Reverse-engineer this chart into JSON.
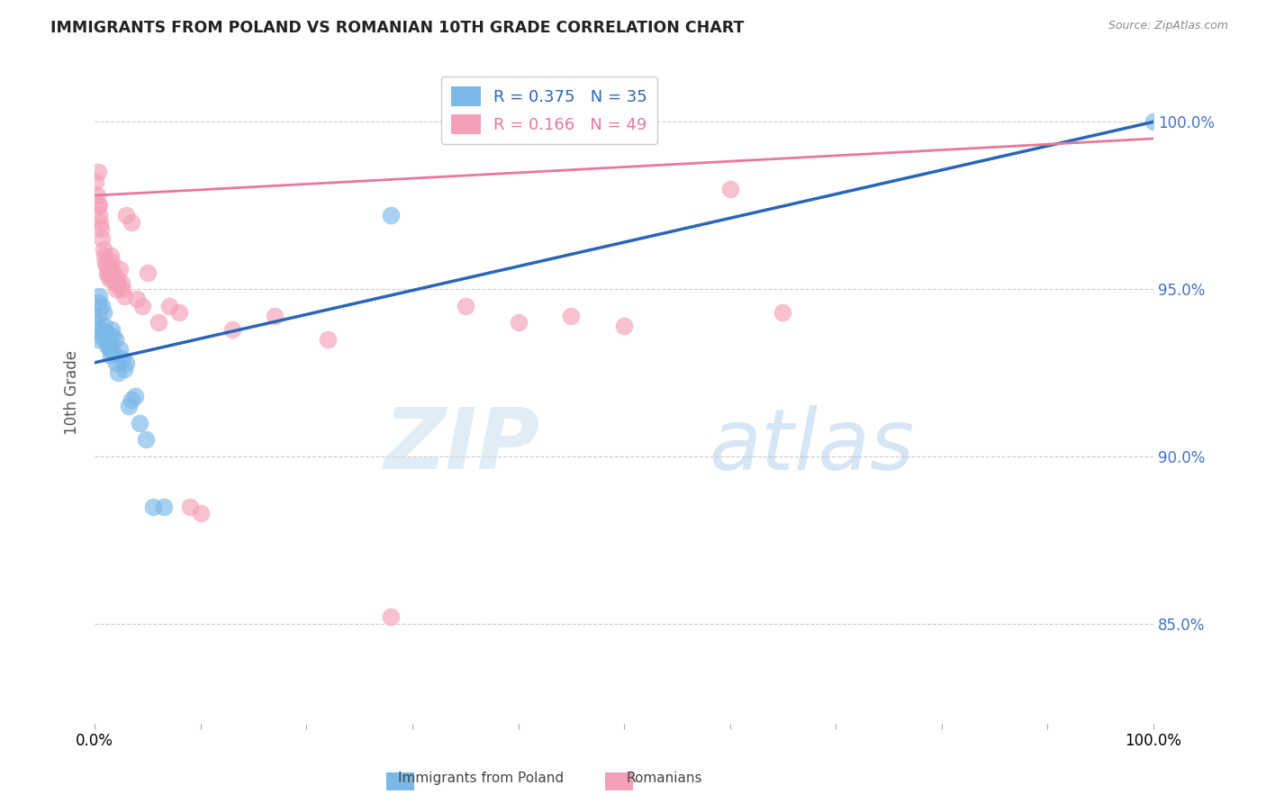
{
  "title": "IMMIGRANTS FROM POLAND VS ROMANIAN 10TH GRADE CORRELATION CHART",
  "source": "Source: ZipAtlas.com",
  "ylabel": "10th Grade",
  "y_ticks": [
    85.0,
    90.0,
    95.0,
    100.0
  ],
  "y_tick_labels": [
    "85.0%",
    "90.0%",
    "95.0%",
    "100.0%"
  ],
  "legend_r1": "R = 0.375",
  "legend_n1": "N = 35",
  "legend_r2": "R = 0.166",
  "legend_n2": "N = 49",
  "blue_color": "#7ab8e8",
  "pink_color": "#f4a0b8",
  "blue_line_color": "#2966b8",
  "pink_line_color": "#e8789a",
  "watermark_zip": "ZIP",
  "watermark_atlas": "atlas",
  "blue_scatter_x": [
    0.001,
    0.002,
    0.003,
    0.004,
    0.005,
    0.006,
    0.007,
    0.008,
    0.009,
    0.01,
    0.011,
    0.012,
    0.013,
    0.014,
    0.015,
    0.016,
    0.017,
    0.018,
    0.019,
    0.02,
    0.022,
    0.024,
    0.026,
    0.028,
    0.03,
    0.032,
    0.035,
    0.038,
    0.042,
    0.048,
    0.055,
    0.065,
    0.28,
    1.0,
    0.003
  ],
  "blue_scatter_y": [
    94.0,
    93.5,
    94.2,
    94.8,
    93.8,
    93.6,
    94.5,
    94.3,
    93.9,
    93.7,
    93.5,
    93.3,
    93.4,
    93.2,
    93.0,
    93.8,
    93.6,
    93.1,
    93.5,
    92.8,
    92.5,
    93.2,
    92.9,
    92.6,
    92.8,
    91.5,
    91.7,
    91.8,
    91.0,
    90.5,
    88.5,
    88.5,
    97.2,
    100.0,
    94.6
  ],
  "pink_scatter_x": [
    0.001,
    0.002,
    0.003,
    0.004,
    0.005,
    0.006,
    0.007,
    0.008,
    0.009,
    0.01,
    0.011,
    0.012,
    0.013,
    0.014,
    0.015,
    0.016,
    0.017,
    0.018,
    0.019,
    0.02,
    0.021,
    0.022,
    0.024,
    0.026,
    0.028,
    0.03,
    0.035,
    0.04,
    0.045,
    0.05,
    0.06,
    0.07,
    0.08,
    0.09,
    0.1,
    0.13,
    0.17,
    0.22,
    0.28,
    0.35,
    0.4,
    0.45,
    0.5,
    0.6,
    0.65,
    0.003,
    0.004,
    0.025,
    0.015
  ],
  "pink_scatter_y": [
    98.2,
    97.8,
    97.5,
    97.2,
    97.0,
    96.8,
    96.5,
    96.2,
    96.0,
    95.8,
    95.7,
    95.5,
    95.4,
    95.3,
    95.6,
    95.8,
    95.4,
    95.5,
    95.2,
    95.0,
    95.3,
    95.1,
    95.6,
    95.0,
    94.8,
    97.2,
    97.0,
    94.7,
    94.5,
    95.5,
    94.0,
    94.5,
    94.3,
    88.5,
    88.3,
    93.8,
    94.2,
    93.5,
    85.2,
    94.5,
    94.0,
    94.2,
    93.9,
    98.0,
    94.3,
    98.5,
    97.5,
    95.2,
    96.0
  ],
  "blue_trend_x0": 0.0,
  "blue_trend_y0": 92.8,
  "blue_trend_x1": 1.0,
  "blue_trend_y1": 100.0,
  "pink_trend_x0": 0.0,
  "pink_trend_y0": 97.8,
  "pink_trend_x1": 1.0,
  "pink_trend_y1": 99.5,
  "xlim": [
    0.0,
    1.0
  ],
  "ylim": [
    82.0,
    101.8
  ]
}
